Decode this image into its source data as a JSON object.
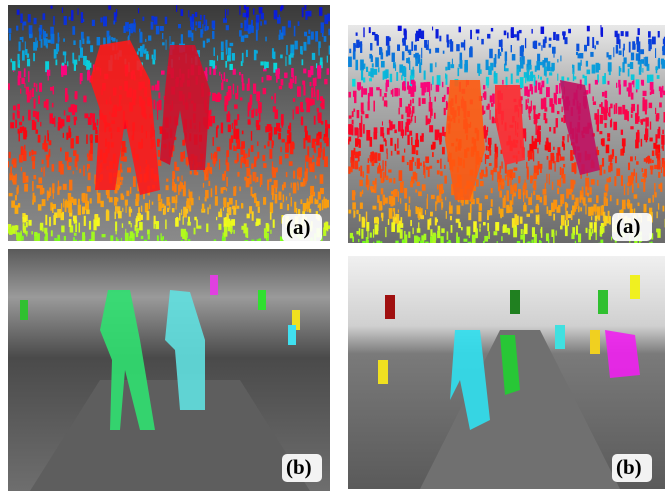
{
  "panels": [
    {
      "label": "(a)"
    },
    {
      "label": "(b)"
    },
    {
      "label": "(a)"
    },
    {
      "label": "(b)"
    }
  ]
}
